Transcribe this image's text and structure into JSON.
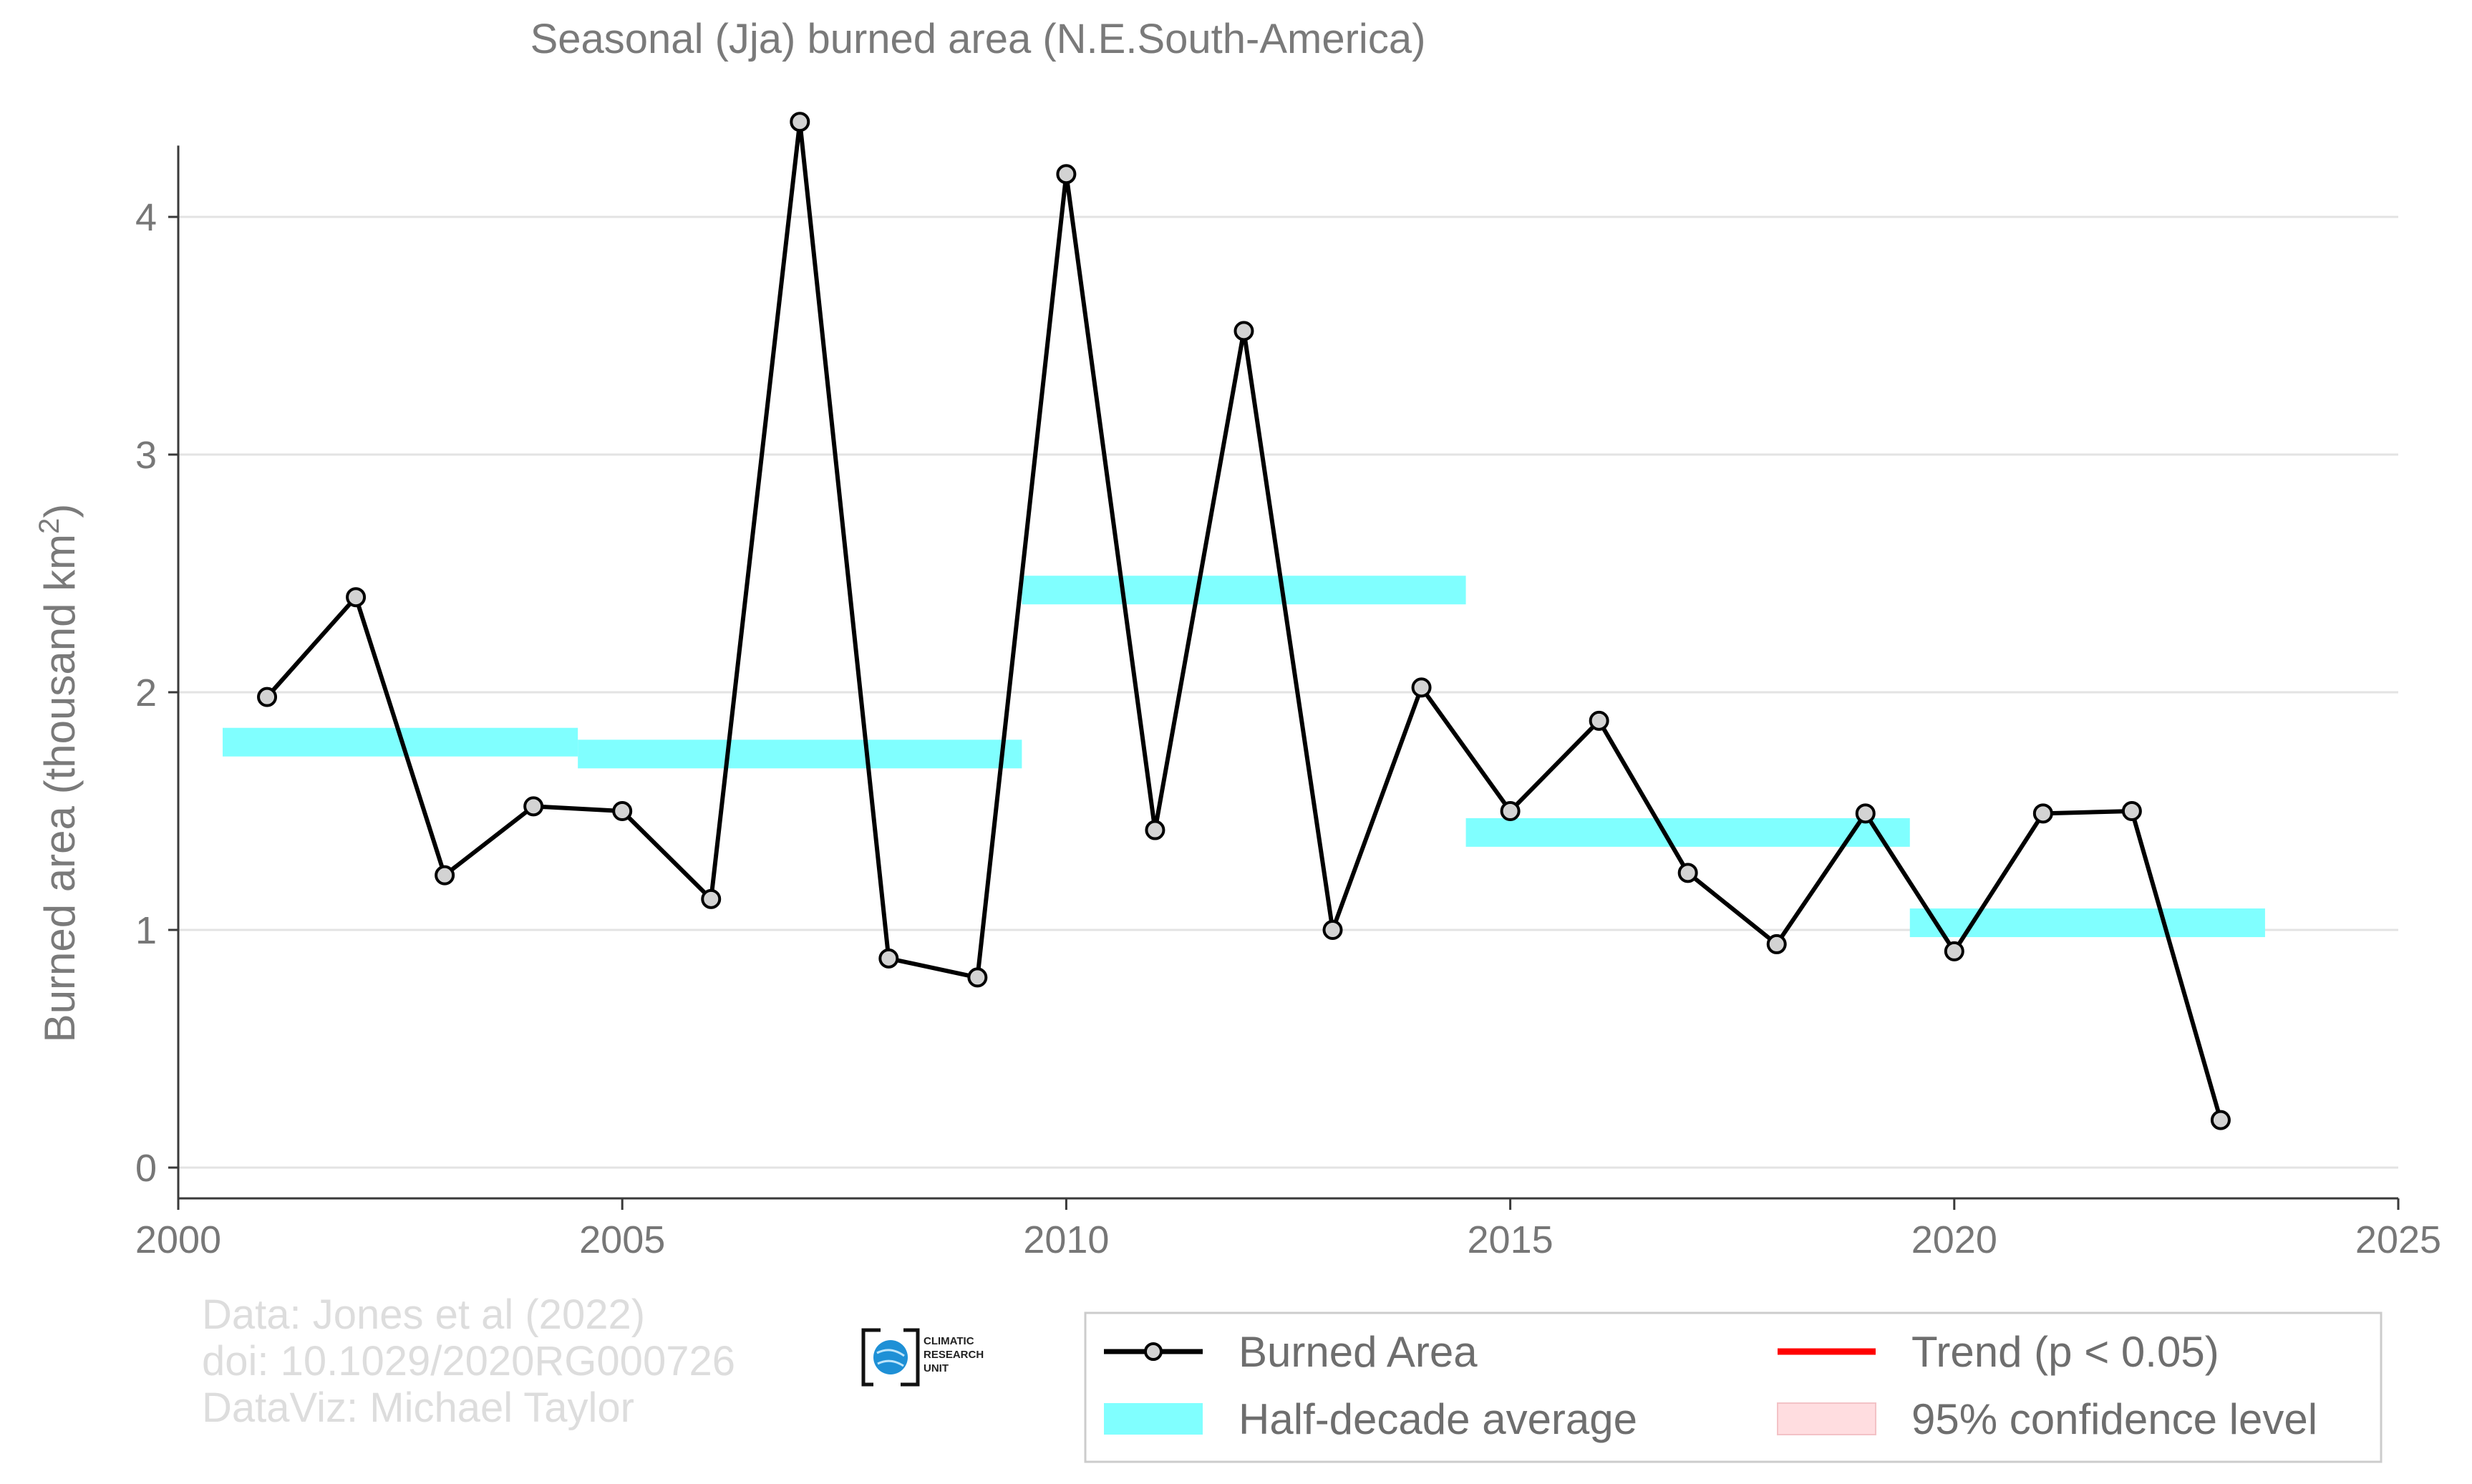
{
  "chart_data": {
    "type": "line",
    "title": "Seasonal (Jja) burned area (N.E.South-America)",
    "ylabel_main": "Burned area (thousand km",
    "ylabel_sup": "2",
    "ylabel_close": ")",
    "xlabel": "",
    "xlim": [
      2000,
      2025
    ],
    "ylim": [
      0,
      4.4
    ],
    "x_ticks": [
      2000,
      2005,
      2010,
      2015,
      2020,
      2025
    ],
    "y_ticks": [
      0,
      1,
      2,
      3,
      4
    ],
    "grid": "horizontal",
    "series": [
      {
        "name": "Burned Area",
        "color": "#000000",
        "marker_fill": "#d3d3d3",
        "x": [
          2001,
          2002,
          2003,
          2004,
          2005,
          2006,
          2007,
          2008,
          2009,
          2010,
          2011,
          2012,
          2013,
          2014,
          2015,
          2016,
          2017,
          2018,
          2019,
          2020,
          2021,
          2022,
          2023
        ],
        "values": [
          1.98,
          2.4,
          1.23,
          1.52,
          1.5,
          1.13,
          4.4,
          0.88,
          0.8,
          4.18,
          1.42,
          3.52,
          1.0,
          2.02,
          1.5,
          1.88,
          1.24,
          0.94,
          1.49,
          0.91,
          1.49,
          1.5,
          0.2
        ]
      }
    ],
    "half_decade_averages": {
      "name": "Half-decade average",
      "color": "#80ffff",
      "segments": [
        {
          "x_start": 2000.5,
          "x_end": 2004.5,
          "value": 1.79
        },
        {
          "x_start": 2004.5,
          "x_end": 2009.5,
          "value": 1.74
        },
        {
          "x_start": 2009.5,
          "x_end": 2014.5,
          "value": 2.43
        },
        {
          "x_start": 2014.5,
          "x_end": 2019.5,
          "value": 1.41
        },
        {
          "x_start": 2019.5,
          "x_end": 2023.5,
          "value": 1.03
        }
      ]
    },
    "legend": {
      "placement": "bottom-right",
      "items": [
        {
          "label": "Burned Area",
          "kind": "line-marker",
          "color": "#000000"
        },
        {
          "label": "Trend (p < 0.05)",
          "kind": "line",
          "color": "#ff0000"
        },
        {
          "label": "Half-decade average",
          "kind": "band",
          "color": "#80ffff"
        },
        {
          "label": "95% confidence level",
          "kind": "fill",
          "color": "#ffdde0"
        }
      ]
    }
  },
  "credits": {
    "line1": "Data: Jones et al (2022)",
    "line2": "doi: 10.1029/2020RG000726",
    "line3": "DataViz: Michael Taylor"
  },
  "logo": {
    "line1": "CLIMATIC",
    "line2": "RESEARCH",
    "line3": "UNIT",
    "color": "#1e90d6"
  }
}
